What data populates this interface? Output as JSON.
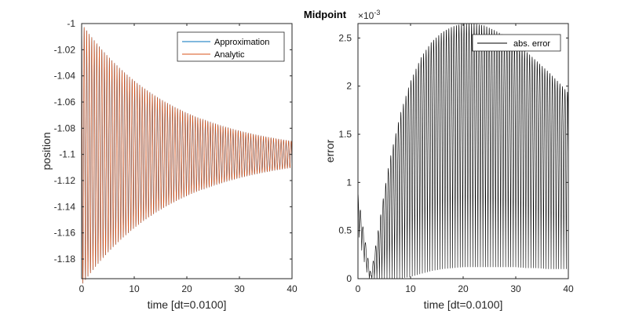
{
  "figure_title": "Midpoint",
  "colors": {
    "approximation": "#0072BD",
    "analytic": "#D95319",
    "error": "#000000",
    "axes": "#262626"
  },
  "chart_data": [
    {
      "type": "line",
      "title": "",
      "xlabel": "time [dt=0.0100]",
      "ylabel": "position",
      "xlim": [
        0,
        40
      ],
      "ylim": [
        -1.195,
        -1.0
      ],
      "xticks": [
        0,
        10,
        20,
        30,
        40
      ],
      "xtick_labels": [
        "0",
        "10",
        "20",
        "30",
        "40"
      ],
      "yticks": [
        -1.18,
        -1.16,
        -1.14,
        -1.12,
        -1.1,
        -1.08,
        -1.06,
        -1.04,
        -1.02,
        -1
      ],
      "ytick_labels": [
        "-1.18",
        "-1.16",
        "-1.14",
        "-1.12",
        "-1.1",
        "-1.08",
        "-1.06",
        "-1.04",
        "-1.02",
        "-1"
      ],
      "legend": {
        "position": "top-right",
        "entries": [
          "Approximation",
          "Analytic"
        ]
      },
      "grid": false,
      "series": [
        {
          "name": "Approximation",
          "model": {
            "center": -1.1,
            "amplitude": 0.1,
            "decay_rate": 0.0574,
            "period": 0.48
          }
        },
        {
          "name": "Analytic",
          "model": {
            "center": -1.1,
            "amplitude": 0.1,
            "decay_rate": 0.0574,
            "period": 0.48
          }
        }
      ]
    },
    {
      "type": "line",
      "title": "",
      "xlabel": "time [dt=0.0100]",
      "ylabel": "error",
      "xlim": [
        0,
        40
      ],
      "ylim": [
        0,
        0.00265
      ],
      "xticks": [
        0,
        10,
        20,
        30,
        40
      ],
      "xtick_labels": [
        "0",
        "10",
        "20",
        "30",
        "40"
      ],
      "yticks": [
        0,
        0.0005,
        0.001,
        0.0015,
        0.002,
        0.0025
      ],
      "ytick_labels": [
        "0",
        "0.5",
        "1",
        "1.5",
        "2",
        "2.5"
      ],
      "exponent_label": "×10",
      "exponent_power": "-3",
      "legend": {
        "position": "top-right",
        "entries": [
          "abs. error"
        ]
      },
      "grid": false,
      "series": [
        {
          "name": "abs. error",
          "envelope": {
            "t": [
              0,
              0.5,
              1,
              1.5,
              2,
              2.5,
              3,
              4,
              5,
              6,
              8,
              10,
              12,
              14,
              16,
              18,
              20,
              22,
              24,
              26,
              28,
              30,
              32,
              34,
              36,
              38,
              40
            ],
            "upper": [
              0.0009,
              0.0007,
              0.00052,
              0.00035,
              0.00018,
              4e-05,
              0.00022,
              0.00055,
              0.0009,
              0.00122,
              0.0017,
              0.00205,
              0.0023,
              0.00246,
              0.00256,
              0.00262,
              0.00265,
              0.00265,
              0.00263,
              0.00258,
              0.00252,
              0.00245,
              0.00236,
              0.00226,
              0.00216,
              0.00205,
              0.00193
            ],
            "lower": [
              0.0005,
              0.00035,
              0.00022,
              0.0001,
              0.0,
              0.0,
              0.0,
              0.0,
              0.0,
              0.0,
              0.0,
              2e-05,
              5e-05,
              8e-05,
              0.0001,
              0.00011,
              0.00012,
              0.00012,
              0.00012,
              0.00012,
              0.00012,
              0.00012,
              0.00011,
              0.00011,
              0.0001,
              0.0001,
              0.0001
            ]
          },
          "period": 0.48
        }
      ]
    }
  ]
}
